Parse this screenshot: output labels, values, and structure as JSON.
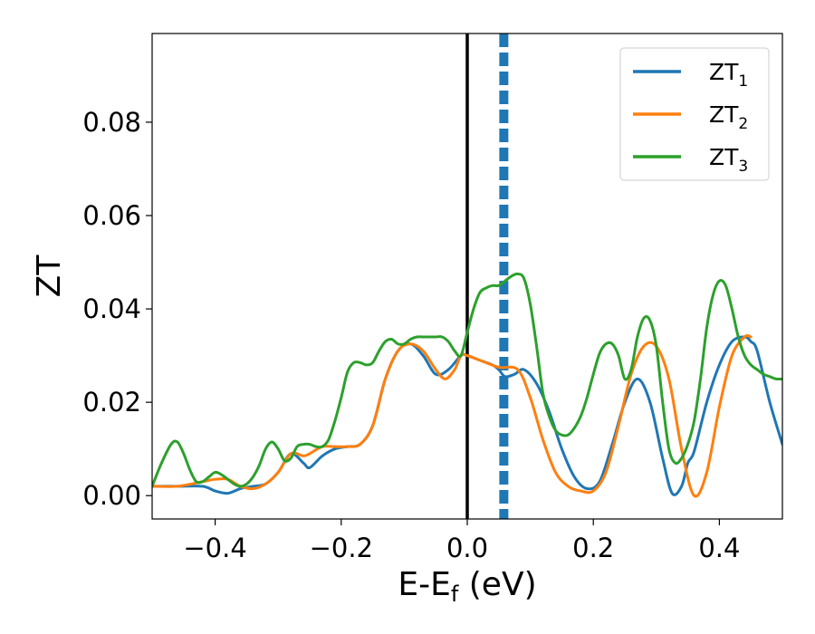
{
  "chart_data": {
    "type": "line",
    "xlabel": {
      "main": "E-E",
      "sub": "f",
      "suffix": " (eV)"
    },
    "ylabel": "ZT",
    "xlim": [
      -0.5,
      0.5
    ],
    "ylim": [
      -0.005,
      0.099
    ],
    "xticks": [
      -0.4,
      -0.2,
      0.0,
      0.2,
      0.4
    ],
    "xtick_labels": [
      "−0.4",
      "−0.2",
      "0.0",
      "0.2",
      "0.4"
    ],
    "yticks": [
      0.0,
      0.02,
      0.04,
      0.06,
      0.08
    ],
    "ytick_labels": [
      "0.00",
      "0.02",
      "0.04",
      "0.06",
      "0.08"
    ],
    "grid": false,
    "legend_position": "top-right",
    "vlines": [
      {
        "x": 0.0,
        "color": "#000000",
        "style": "solid"
      },
      {
        "x": 0.058,
        "color": "#1f77b4",
        "style": "dashed"
      }
    ],
    "series": [
      {
        "name": "ZT",
        "sub": "1",
        "color": "#1f77b4",
        "x": [
          -0.5,
          -0.46,
          -0.42,
          -0.4,
          -0.38,
          -0.36,
          -0.34,
          -0.32,
          -0.3,
          -0.28,
          -0.26,
          -0.25,
          -0.23,
          -0.21,
          -0.19,
          -0.17,
          -0.15,
          -0.13,
          -0.11,
          -0.09,
          -0.07,
          -0.05,
          -0.03,
          -0.01,
          0.0,
          0.02,
          0.04,
          0.05,
          0.06,
          0.075,
          0.09,
          0.11,
          0.13,
          0.15,
          0.17,
          0.19,
          0.21,
          0.23,
          0.25,
          0.27,
          0.29,
          0.31,
          0.325,
          0.34,
          0.35,
          0.36,
          0.38,
          0.4,
          0.42,
          0.44,
          0.45,
          0.46,
          0.48,
          0.5
        ],
        "y": [
          0.002,
          0.002,
          0.002,
          0.001,
          0.0005,
          0.0015,
          0.002,
          0.0025,
          0.005,
          0.009,
          0.007,
          0.006,
          0.0085,
          0.01,
          0.0105,
          0.011,
          0.015,
          0.025,
          0.031,
          0.0325,
          0.03,
          0.026,
          0.027,
          0.03,
          0.03,
          0.029,
          0.028,
          0.027,
          0.0255,
          0.026,
          0.027,
          0.024,
          0.018,
          0.01,
          0.004,
          0.0015,
          0.003,
          0.011,
          0.02,
          0.025,
          0.02,
          0.008,
          0.0005,
          0.002,
          0.007,
          0.0095,
          0.02,
          0.028,
          0.033,
          0.034,
          0.033,
          0.031,
          0.02,
          0.011
        ]
      },
      {
        "name": "ZT",
        "sub": "2",
        "color": "#ff7f0e",
        "x": [
          -0.5,
          -0.46,
          -0.42,
          -0.4,
          -0.38,
          -0.36,
          -0.34,
          -0.32,
          -0.3,
          -0.28,
          -0.26,
          -0.25,
          -0.23,
          -0.21,
          -0.19,
          -0.17,
          -0.15,
          -0.13,
          -0.11,
          -0.09,
          -0.07,
          -0.05,
          -0.035,
          -0.02,
          -0.01,
          0.0,
          0.02,
          0.05,
          0.08,
          0.1,
          0.12,
          0.14,
          0.16,
          0.18,
          0.2,
          0.22,
          0.24,
          0.26,
          0.28,
          0.3,
          0.32,
          0.34,
          0.36,
          0.38,
          0.4,
          0.42,
          0.44,
          0.45
        ],
        "y": [
          0.002,
          0.002,
          0.003,
          0.0035,
          0.0035,
          0.002,
          0.0015,
          0.0025,
          0.005,
          0.009,
          0.0085,
          0.009,
          0.0105,
          0.0105,
          0.0105,
          0.011,
          0.015,
          0.025,
          0.031,
          0.0325,
          0.031,
          0.027,
          0.025,
          0.027,
          0.03,
          0.03,
          0.029,
          0.0275,
          0.027,
          0.021,
          0.012,
          0.005,
          0.002,
          0.001,
          0.001,
          0.005,
          0.015,
          0.026,
          0.032,
          0.032,
          0.025,
          0.01,
          0.0,
          0.005,
          0.019,
          0.03,
          0.034,
          0.034
        ]
      },
      {
        "name": "ZT",
        "sub": "3",
        "color": "#2ca02c",
        "x": [
          -0.5,
          -0.485,
          -0.47,
          -0.46,
          -0.45,
          -0.44,
          -0.43,
          -0.42,
          -0.41,
          -0.4,
          -0.39,
          -0.38,
          -0.37,
          -0.36,
          -0.35,
          -0.34,
          -0.33,
          -0.32,
          -0.31,
          -0.3,
          -0.29,
          -0.28,
          -0.27,
          -0.26,
          -0.25,
          -0.24,
          -0.23,
          -0.22,
          -0.21,
          -0.2,
          -0.19,
          -0.18,
          -0.17,
          -0.16,
          -0.15,
          -0.14,
          -0.13,
          -0.12,
          -0.11,
          -0.1,
          -0.09,
          -0.08,
          -0.07,
          -0.06,
          -0.05,
          -0.04,
          -0.03,
          -0.02,
          -0.01,
          0.0,
          0.01,
          0.02,
          0.03,
          0.04,
          0.05,
          0.06,
          0.07,
          0.08,
          0.09,
          0.1,
          0.11,
          0.12,
          0.13,
          0.14,
          0.15,
          0.16,
          0.17,
          0.18,
          0.19,
          0.2,
          0.21,
          0.22,
          0.23,
          0.24,
          0.25,
          0.26,
          0.27,
          0.28,
          0.29,
          0.3,
          0.31,
          0.32,
          0.33,
          0.34,
          0.35,
          0.36,
          0.37,
          0.38,
          0.39,
          0.4,
          0.41,
          0.42,
          0.43,
          0.44,
          0.45,
          0.46,
          0.47,
          0.48,
          0.49,
          0.5
        ],
        "y": [
          0.002,
          0.007,
          0.011,
          0.0115,
          0.009,
          0.0055,
          0.003,
          0.003,
          0.004,
          0.005,
          0.0045,
          0.0035,
          0.0025,
          0.002,
          0.0025,
          0.004,
          0.0065,
          0.01,
          0.0115,
          0.01,
          0.0075,
          0.008,
          0.0105,
          0.011,
          0.011,
          0.0105,
          0.0105,
          0.012,
          0.016,
          0.021,
          0.0265,
          0.0285,
          0.0285,
          0.028,
          0.0285,
          0.031,
          0.033,
          0.0335,
          0.0325,
          0.0325,
          0.0335,
          0.034,
          0.034,
          0.034,
          0.034,
          0.034,
          0.033,
          0.031,
          0.03,
          0.035,
          0.04,
          0.0435,
          0.0445,
          0.045,
          0.045,
          0.046,
          0.047,
          0.0475,
          0.0465,
          0.041,
          0.032,
          0.022,
          0.017,
          0.014,
          0.013,
          0.013,
          0.0145,
          0.017,
          0.021,
          0.026,
          0.0305,
          0.0325,
          0.0325,
          0.03,
          0.025,
          0.027,
          0.034,
          0.038,
          0.0375,
          0.032,
          0.02,
          0.01,
          0.007,
          0.008,
          0.011,
          0.016,
          0.025,
          0.036,
          0.043,
          0.046,
          0.045,
          0.04,
          0.034,
          0.03,
          0.028,
          0.027,
          0.026,
          0.0255,
          0.025,
          0.025
        ]
      }
    ]
  }
}
